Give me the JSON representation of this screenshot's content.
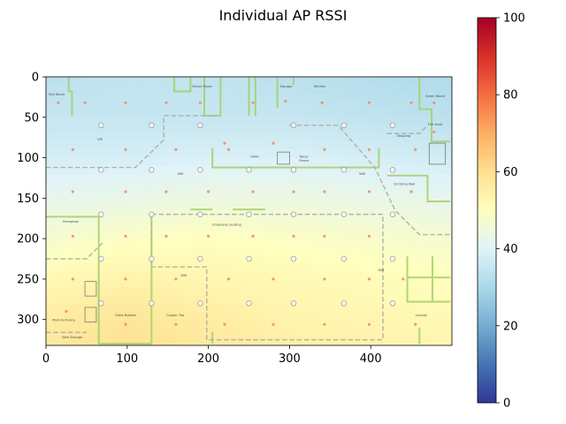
{
  "chart_data": {
    "type": "heatmap",
    "title": "Individual AP RSSI",
    "xlim": [
      0,
      500
    ],
    "ylim": [
      332,
      0
    ],
    "x_ticks": [
      0,
      100,
      200,
      300,
      400
    ],
    "y_ticks": [
      0,
      50,
      100,
      150,
      200,
      250,
      300
    ],
    "grid": false,
    "colorbar": {
      "colormap": "RdYlBu_r",
      "range": [
        0,
        100
      ],
      "ticks": [
        0,
        20,
        40,
        60,
        80,
        100
      ],
      "placement": "right"
    },
    "rssi_field": {
      "x": [
        0,
        100,
        200,
        300,
        400,
        500
      ],
      "y": [
        0,
        50,
        100,
        150,
        200,
        250,
        300,
        332
      ],
      "values": [
        [
          33,
          34,
          34,
          33,
          32,
          31
        ],
        [
          35,
          35,
          35,
          35,
          34,
          33
        ],
        [
          38,
          38,
          39,
          39,
          38,
          37
        ],
        [
          42,
          43,
          44,
          44,
          43,
          42
        ],
        [
          47,
          49,
          50,
          49,
          48,
          47
        ],
        [
          52,
          54,
          53,
          52,
          51,
          50
        ],
        [
          56,
          58,
          56,
          54,
          53,
          52
        ],
        [
          57,
          59,
          57,
          55,
          54,
          53
        ]
      ]
    },
    "access_points": {
      "color": "#999999",
      "points": [
        [
          68,
          60
        ],
        [
          130,
          60
        ],
        [
          190,
          60
        ],
        [
          305,
          60
        ],
        [
          367,
          60
        ],
        [
          427,
          60
        ],
        [
          68,
          115
        ],
        [
          130,
          115
        ],
        [
          190,
          115
        ],
        [
          250,
          115
        ],
        [
          305,
          115
        ],
        [
          367,
          115
        ],
        [
          427,
          115
        ],
        [
          68,
          170
        ],
        [
          130,
          170
        ],
        [
          190,
          170
        ],
        [
          250,
          170
        ],
        [
          305,
          170
        ],
        [
          367,
          170
        ],
        [
          427,
          170
        ],
        [
          68,
          225
        ],
        [
          130,
          225
        ],
        [
          190,
          225
        ],
        [
          250,
          225
        ],
        [
          305,
          225
        ],
        [
          367,
          225
        ],
        [
          427,
          225
        ],
        [
          68,
          280
        ],
        [
          130,
          280
        ],
        [
          190,
          280
        ],
        [
          250,
          280
        ],
        [
          305,
          280
        ],
        [
          367,
          280
        ],
        [
          427,
          280
        ]
      ]
    },
    "sensor_points": {
      "color": "#f08a5d",
      "points": [
        [
          15,
          32
        ],
        [
          48,
          32
        ],
        [
          98,
          32
        ],
        [
          148,
          32
        ],
        [
          190,
          32
        ],
        [
          255,
          32
        ],
        [
          295,
          30
        ],
        [
          340,
          32
        ],
        [
          398,
          32
        ],
        [
          450,
          32
        ],
        [
          478,
          32
        ],
        [
          220,
          82
        ],
        [
          280,
          82
        ],
        [
          478,
          68
        ],
        [
          33,
          90
        ],
        [
          98,
          90
        ],
        [
          160,
          90
        ],
        [
          225,
          90
        ],
        [
          343,
          90
        ],
        [
          398,
          90
        ],
        [
          455,
          90
        ],
        [
          33,
          142
        ],
        [
          98,
          142
        ],
        [
          148,
          142
        ],
        [
          200,
          142
        ],
        [
          255,
          142
        ],
        [
          305,
          142
        ],
        [
          343,
          142
        ],
        [
          398,
          142
        ],
        [
          450,
          142
        ],
        [
          33,
          197
        ],
        [
          98,
          197
        ],
        [
          148,
          197
        ],
        [
          200,
          197
        ],
        [
          255,
          197
        ],
        [
          305,
          197
        ],
        [
          343,
          197
        ],
        [
          398,
          197
        ],
        [
          33,
          250
        ],
        [
          98,
          250
        ],
        [
          160,
          250
        ],
        [
          225,
          250
        ],
        [
          280,
          250
        ],
        [
          343,
          250
        ],
        [
          398,
          250
        ],
        [
          440,
          250
        ],
        [
          25,
          290
        ],
        [
          98,
          306
        ],
        [
          160,
          306
        ],
        [
          220,
          306
        ],
        [
          280,
          306
        ],
        [
          343,
          306
        ],
        [
          398,
          306
        ],
        [
          455,
          306
        ]
      ]
    },
    "rooms": [
      {
        "name": "Tool Room",
        "x": 3,
        "y": 23
      },
      {
        "name": "Server Room",
        "x": 180,
        "y": 13
      },
      {
        "name": "Storage",
        "x": 288,
        "y": 13
      },
      {
        "name": "Kitchen",
        "x": 330,
        "y": 13
      },
      {
        "name": "Green Room",
        "x": 467,
        "y": 25
      },
      {
        "name": "The Vault",
        "x": 470,
        "y": 60
      },
      {
        "name": "Lab",
        "x": 63,
        "y": 78
      },
      {
        "name": "Shipping",
        "x": 432,
        "y": 74
      },
      {
        "name": "HVAC",
        "x": 252,
        "y": 100
      },
      {
        "name": "Telco/",
        "x": 312,
        "y": 100
      },
      {
        "name": "Power",
        "x": 312,
        "y": 105
      },
      {
        "name": "Wifi",
        "x": 162,
        "y": 121
      },
      {
        "name": "Wifi",
        "x": 386,
        "y": 121
      },
      {
        "name": "Climbing Wall",
        "x": 428,
        "y": 134
      },
      {
        "name": "Reception",
        "x": 21,
        "y": 180
      },
      {
        "name": "Employee Seating",
        "x": 205,
        "y": 184
      },
      {
        "name": "Wifi",
        "x": 166,
        "y": 247
      },
      {
        "name": "Wifi",
        "x": 409,
        "y": 240
      },
      {
        "name": "Main Entrance",
        "x": 8,
        "y": 302
      },
      {
        "name": "Glass Bottom",
        "x": 85,
        "y": 296
      },
      {
        "name": "Copper Top",
        "x": 148,
        "y": 296
      },
      {
        "name": "Lounge",
        "x": 455,
        "y": 296
      },
      {
        "name": "Bike Storage",
        "x": 20,
        "y": 323
      }
    ]
  }
}
